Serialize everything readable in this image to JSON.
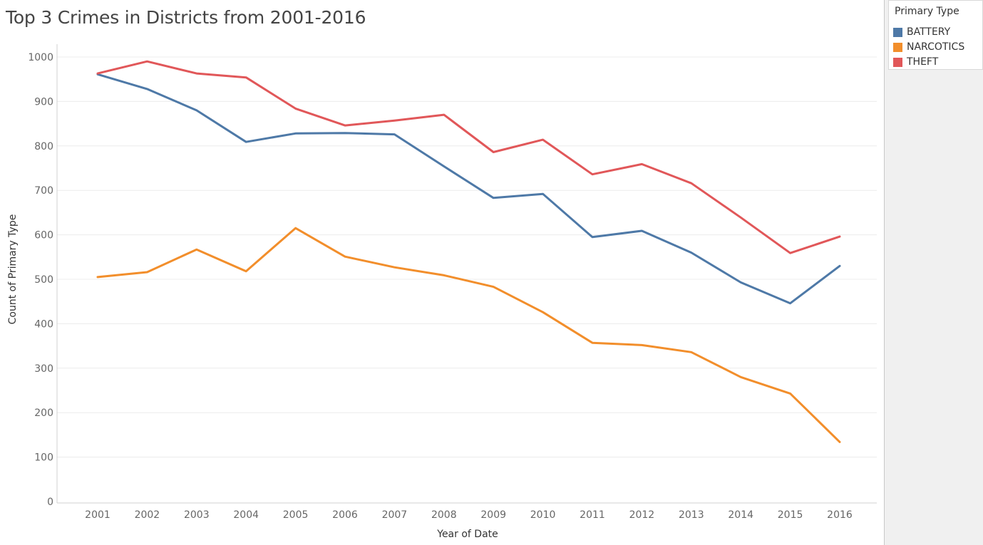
{
  "title": "Top 3 Crimes in Districts from 2001-2016",
  "legend": {
    "title": "Primary Type",
    "items": [
      {
        "label": "BATTERY",
        "color": "#4e79a7"
      },
      {
        "label": "NARCOTICS",
        "color": "#f28e2b"
      },
      {
        "label": "THEFT",
        "color": "#e15759"
      }
    ]
  },
  "chart_data": {
    "type": "line",
    "title": "Top 3 Crimes in Districts from 2001-2016",
    "xlabel": "Year of Date",
    "ylabel": "Count of Primary Type",
    "x": [
      "2001",
      "2002",
      "2003",
      "2004",
      "2005",
      "2006",
      "2007",
      "2008",
      "2009",
      "2010",
      "2011",
      "2012",
      "2013",
      "2014",
      "2015",
      "2016"
    ],
    "ylim": [
      0,
      1000
    ],
    "yticks": [
      0,
      100,
      200,
      300,
      400,
      500,
      600,
      700,
      800,
      900,
      1000
    ],
    "grid": true,
    "legend_position": "top-right",
    "series": [
      {
        "name": "BATTERY",
        "color": "#4e79a7",
        "values": [
          961,
          928,
          880,
          809,
          828,
          829,
          826,
          754,
          683,
          692,
          595,
          609,
          560,
          493,
          446,
          530
        ]
      },
      {
        "name": "NARCOTICS",
        "color": "#f28e2b",
        "values": [
          505,
          516,
          567,
          518,
          615,
          551,
          527,
          509,
          483,
          426,
          357,
          352,
          336,
          280,
          243,
          134
        ]
      },
      {
        "name": "THEFT",
        "color": "#e15759",
        "values": [
          963,
          990,
          963,
          954,
          884,
          846,
          857,
          870,
          786,
          814,
          736,
          759,
          716,
          639,
          559,
          596
        ]
      }
    ]
  }
}
